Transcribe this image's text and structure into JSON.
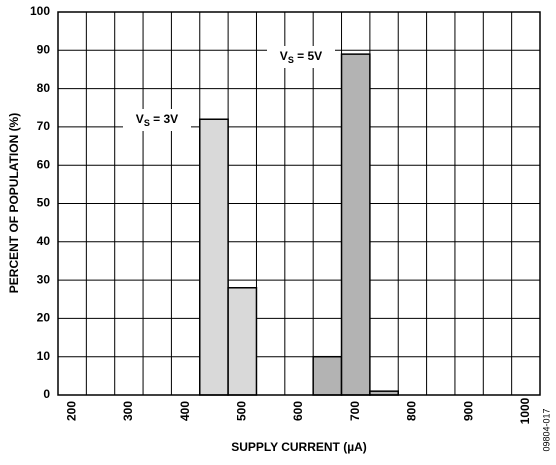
{
  "chart_data": {
    "type": "histogram",
    "xlabel": "SUPPLY CURRENT (µA)",
    "ylabel": "PERCENT OF POPULATION (%)",
    "series": [
      {
        "name": {
          "main": "V",
          "sub": "S",
          "rest": " = 3V"
        },
        "color": "#d9d9d9",
        "bins": [
          425,
          475,
          525
        ],
        "values": [
          72,
          28
        ]
      },
      {
        "name": {
          "main": "V",
          "sub": "S",
          "rest": " = 5V"
        },
        "color": "#b3b3b3",
        "bins": [
          625,
          675,
          725,
          775
        ],
        "values": [
          10,
          89,
          1
        ]
      }
    ],
    "xlim": [
      175,
      1025
    ],
    "xticks": [
      200,
      300,
      400,
      500,
      600,
      700,
      800,
      900,
      1000
    ],
    "xgrid": [
      225,
      275,
      325,
      375,
      425,
      475,
      525,
      575,
      625,
      675,
      725,
      775,
      825,
      875,
      925,
      975
    ],
    "ylim": [
      0,
      100
    ],
    "yticks": [
      0,
      10,
      20,
      30,
      40,
      50,
      60,
      70,
      80,
      90,
      100
    ],
    "grid": true,
    "figure_id": "09804-017"
  }
}
